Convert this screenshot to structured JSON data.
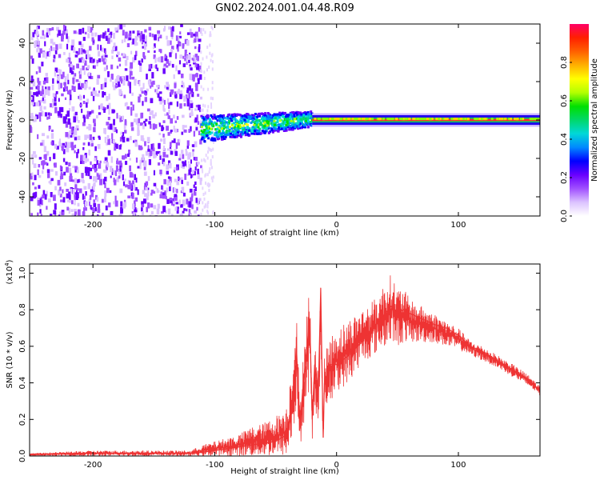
{
  "title": "GN02.2024.001.04.48.R09",
  "chart_data": [
    {
      "type": "heatmap",
      "panel": "spectrogram",
      "xlabel": "Height of straight line (km)",
      "ylabel": "Frequency (Hz)",
      "xlim": [
        -252,
        167
      ],
      "ylim": [
        -50,
        50
      ],
      "xticks": [
        -200,
        -100,
        0,
        100
      ],
      "yticks": [
        -40,
        -20,
        0,
        20,
        40
      ],
      "grid": false,
      "regions": [
        {
          "x_range": [
            -252,
            -112
          ],
          "freq_range": [
            -50,
            50
          ],
          "amplitude": 0.1,
          "description": "broadband noise"
        },
        {
          "x_range": [
            -112,
            -20
          ],
          "freq_range": [
            -10,
            8
          ],
          "amplitude": 0.35
        },
        {
          "x_range": [
            -20,
            167
          ],
          "freq_range": [
            -2,
            2
          ],
          "amplitude": 0.95
        }
      ],
      "colorbar": {
        "label": "Normalized spectral amplitude",
        "range": [
          0,
          1
        ],
        "ticks": [
          "0.0",
          "0.2",
          "0.4",
          "0.6",
          "0.8"
        ],
        "colors": [
          "#ffffff",
          "#dcc3ff",
          "#a050ff",
          "#6a00ff",
          "#0000ff",
          "#0088ff",
          "#00d8d8",
          "#00d86a",
          "#00e000",
          "#b4ff00",
          "#ffff00",
          "#ffb000",
          "#ff6000",
          "#ff2000",
          "#ff0066"
        ]
      }
    },
    {
      "type": "line",
      "panel": "snr",
      "xlabel": "Height of straight line (km)",
      "ylabel": "SNR (10 * v/v)",
      "y_scale_label": "(x10",
      "y_scale_exp": "4",
      "xlim": [
        -252,
        167
      ],
      "ylim": [
        0,
        1.05
      ],
      "xticks": [
        -200,
        -100,
        0,
        100
      ],
      "yticks": [
        "0.0",
        "0.2",
        "0.4",
        "0.6",
        "0.8",
        "1.0"
      ],
      "grid": false,
      "series_color": "#ee3333",
      "x": [
        -252,
        -200,
        -150,
        -120,
        -110,
        -100,
        -90,
        -80,
        -70,
        -60,
        -50,
        -45,
        -40,
        -38,
        -35,
        -33,
        -30,
        -28,
        -25,
        -22,
        -20,
        -18,
        -15,
        -13,
        -11,
        -10,
        -5,
        0,
        10,
        20,
        30,
        40,
        45,
        50,
        55,
        60,
        70,
        80,
        90,
        100,
        110,
        120,
        130,
        140,
        150,
        160,
        167
      ],
      "y": [
        0.01,
        0.015,
        0.015,
        0.015,
        0.02,
        0.03,
        0.04,
        0.05,
        0.06,
        0.07,
        0.08,
        0.1,
        0.12,
        0.2,
        0.4,
        0.6,
        0.15,
        0.35,
        0.55,
        0.75,
        0.2,
        0.5,
        0.35,
        0.92,
        0.1,
        0.4,
        0.5,
        0.5,
        0.55,
        0.62,
        0.7,
        0.78,
        0.82,
        0.78,
        0.8,
        0.78,
        0.75,
        0.72,
        0.7,
        0.66,
        0.6,
        0.57,
        0.53,
        0.49,
        0.45,
        0.4,
        0.36
      ],
      "upper_envelope": [
        0.015,
        0.03,
        0.03,
        0.03,
        0.06,
        0.08,
        0.1,
        0.12,
        0.16,
        0.18,
        0.22,
        0.25,
        0.28,
        0.45,
        0.65,
        0.8,
        0.25,
        0.55,
        0.75,
        0.95,
        0.3,
        0.6,
        0.5,
        1.0,
        0.18,
        0.55,
        0.65,
        0.7,
        0.75,
        0.8,
        0.85,
        0.95,
        1.0,
        0.92,
        0.92,
        0.86,
        0.82,
        0.78,
        0.74,
        0.7,
        0.63,
        0.6,
        0.56,
        0.52,
        0.48,
        0.43,
        0.38
      ],
      "lower_envelope": [
        0.0,
        0.0,
        0.0,
        0.0,
        0.0,
        0.0,
        0.0,
        0.0,
        0.0,
        0.0,
        0.0,
        0.0,
        0.0,
        0.05,
        0.1,
        0.3,
        0.05,
        0.1,
        0.25,
        0.4,
        0.05,
        0.25,
        0.2,
        0.5,
        0.05,
        0.25,
        0.3,
        0.35,
        0.4,
        0.5,
        0.55,
        0.6,
        0.62,
        0.6,
        0.62,
        0.62,
        0.62,
        0.62,
        0.6,
        0.58,
        0.55,
        0.52,
        0.49,
        0.45,
        0.41,
        0.37,
        0.33
      ]
    }
  ]
}
